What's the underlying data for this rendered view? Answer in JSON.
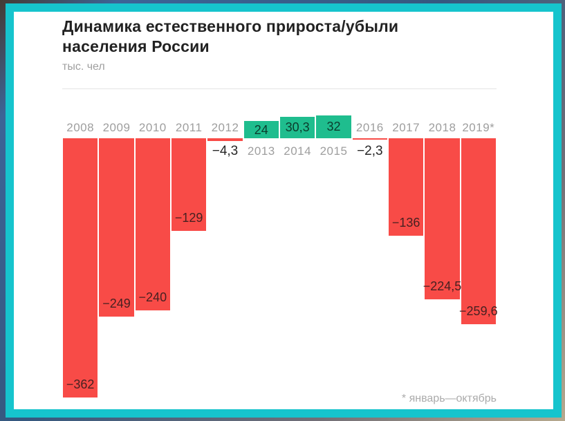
{
  "frame": {
    "border_color": "#16c4cd",
    "card_background": "#ffffff"
  },
  "header": {
    "title": "Динамика естественного прироста/убыли населения России",
    "title_line1": "Динамика естественного прироста/убыли",
    "title_line2": "населения России",
    "units": "тыс. чел"
  },
  "footnote": "* январь—октябрь",
  "chart_data": {
    "type": "bar",
    "title": "Динамика естественного прироста/убыли населения России",
    "ylabel": "тыс. чел",
    "categories": [
      "2008",
      "2009",
      "2010",
      "2011",
      "2012",
      "2013",
      "2014",
      "2015",
      "2016",
      "2017",
      "2018",
      "2019*"
    ],
    "values": [
      -362,
      -249,
      -240,
      -129,
      -4.3,
      24,
      30.3,
      32,
      -2.3,
      -136,
      -224.5,
      -259.6
    ],
    "value_labels": [
      "−362",
      "−249",
      "−240",
      "−129",
      "−4,3",
      "24",
      "30,3",
      "32",
      "−2,3",
      "−136",
      "−224,5",
      "−259,6"
    ],
    "positive_color": "#1fbd8e",
    "negative_color": "#f84b47",
    "year_label_color": "#9e9e9e",
    "footnote": "* январь—октябрь",
    "baseline": 0,
    "ylim": [
      -380,
      40
    ],
    "grid": false,
    "legend": false,
    "bar_label_placement": "negatives inside bar bottom (tiny negatives below baseline), positives inside bar; year labels above baseline for negative years, below baseline for positive years"
  }
}
